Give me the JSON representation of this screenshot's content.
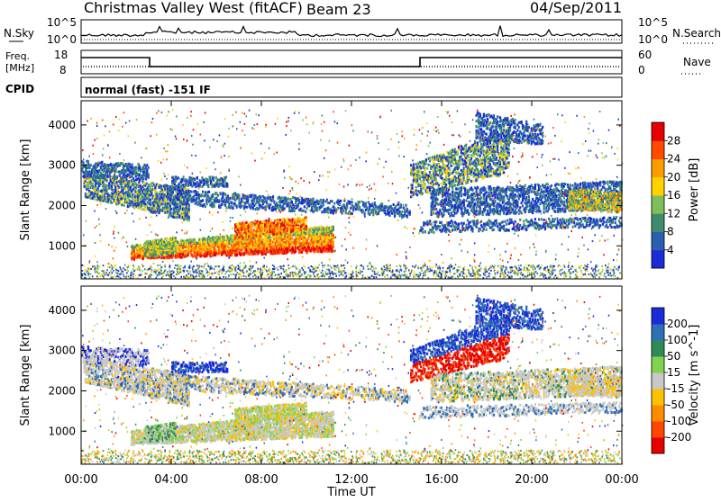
{
  "header": {
    "station": "Christmas Valley West (fitACF)",
    "beam": "Beam 23",
    "date": "04/Sep/2011"
  },
  "strips": {
    "nsky_label": "N.Sky",
    "nsearch_label": "N.Search",
    "nsky_ticks": [
      "10^5",
      "10^0"
    ],
    "nsearch_ticks": [
      "10^5",
      "10^0"
    ],
    "freq_label_1": "Freq.",
    "freq_label_2": "[MHz]",
    "freq_ticks": [
      "18",
      "8"
    ],
    "nave_label": "Nave",
    "nave_ticks": [
      "60",
      "0"
    ],
    "cpid_label": "CPID",
    "cpid_text": "normal (fast) -151 IF"
  },
  "chart_data": [
    {
      "type": "heatmap",
      "panel": "power",
      "ylabel": "Slant Range [km]",
      "xlabel": "Time UT",
      "x_ticks": [
        "00:00",
        "04:00",
        "08:00",
        "12:00",
        "16:00",
        "20:00",
        "00:00"
      ],
      "xlim_hours": [
        0,
        24
      ],
      "y_ticks": [
        1000,
        2000,
        3000,
        4000
      ],
      "ylim": [
        180,
        4600
      ],
      "colorbar_label": "Power [dB]",
      "colorbar_ticks": [
        4,
        8,
        12,
        16,
        20,
        24,
        28
      ],
      "colorbar_colors": [
        "#1a2bd8",
        "#2a5fb0",
        "#3e8c6e",
        "#7fbf5a",
        "#ffd200",
        "#ff9b00",
        "#ff4a00",
        "#e60000"
      ]
    },
    {
      "type": "heatmap",
      "panel": "velocity",
      "ylabel": "Slant Range [km]",
      "xlabel": "Time UT",
      "x_ticks": [
        "00:00",
        "04:00",
        "08:00",
        "12:00",
        "16:00",
        "20:00",
        "00:00"
      ],
      "xlim_hours": [
        0,
        24
      ],
      "y_ticks": [
        1000,
        2000,
        3000,
        4000
      ],
      "ylim": [
        180,
        4600
      ],
      "colorbar_label": "Velocity [m s^-1]",
      "colorbar_ticks": [
        200,
        100,
        50,
        15,
        -15,
        -50,
        -100,
        -200
      ],
      "colorbar_colors": [
        "#1a2bd8",
        "#2f6fb5",
        "#2e8b57",
        "#7fd34d",
        "#c8c8c8",
        "#ffc000",
        "#ff8c00",
        "#ff4500",
        "#e60000"
      ]
    }
  ],
  "axes": {
    "xlabel": "Time UT",
    "ylabel": "Slant Range [km]"
  }
}
